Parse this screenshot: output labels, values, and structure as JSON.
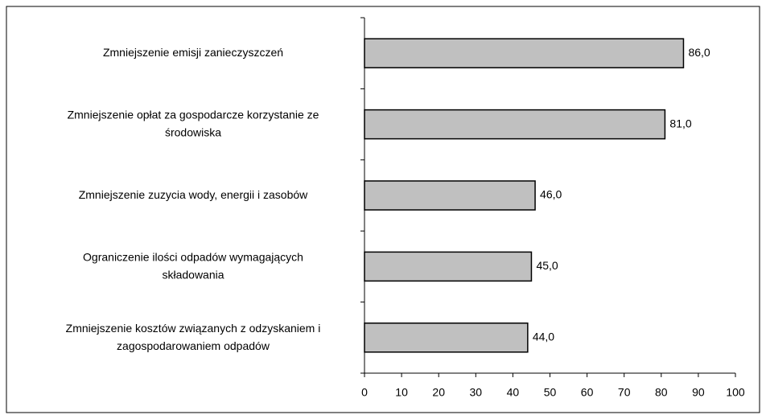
{
  "chart_data": {
    "type": "bar",
    "orientation": "horizontal",
    "categories": [
      [
        "Zmniejszenie emisji zanieczyszczeń"
      ],
      [
        "Zmniejszenie opłat za gospodarcze korzystanie ze",
        "środowiska"
      ],
      [
        "Zmniejszenie zuzycia wody, energii i zasobów"
      ],
      [
        "Ograniczenie ilości odpadów  wymagających",
        "składowania"
      ],
      [
        "Zmniejszenie kosztów związanych z odzyskaniem i",
        "zagospodarowaniem odpadów"
      ]
    ],
    "values": [
      86,
      81,
      46,
      45,
      44
    ],
    "value_labels": [
      "86,0",
      "81,0",
      "46,0",
      "45,0",
      "44,0"
    ],
    "color": "#c0c0c0",
    "xlim": [
      0,
      100
    ],
    "xticks": [
      0,
      10,
      20,
      30,
      40,
      50,
      60,
      70,
      80,
      90,
      100
    ]
  }
}
